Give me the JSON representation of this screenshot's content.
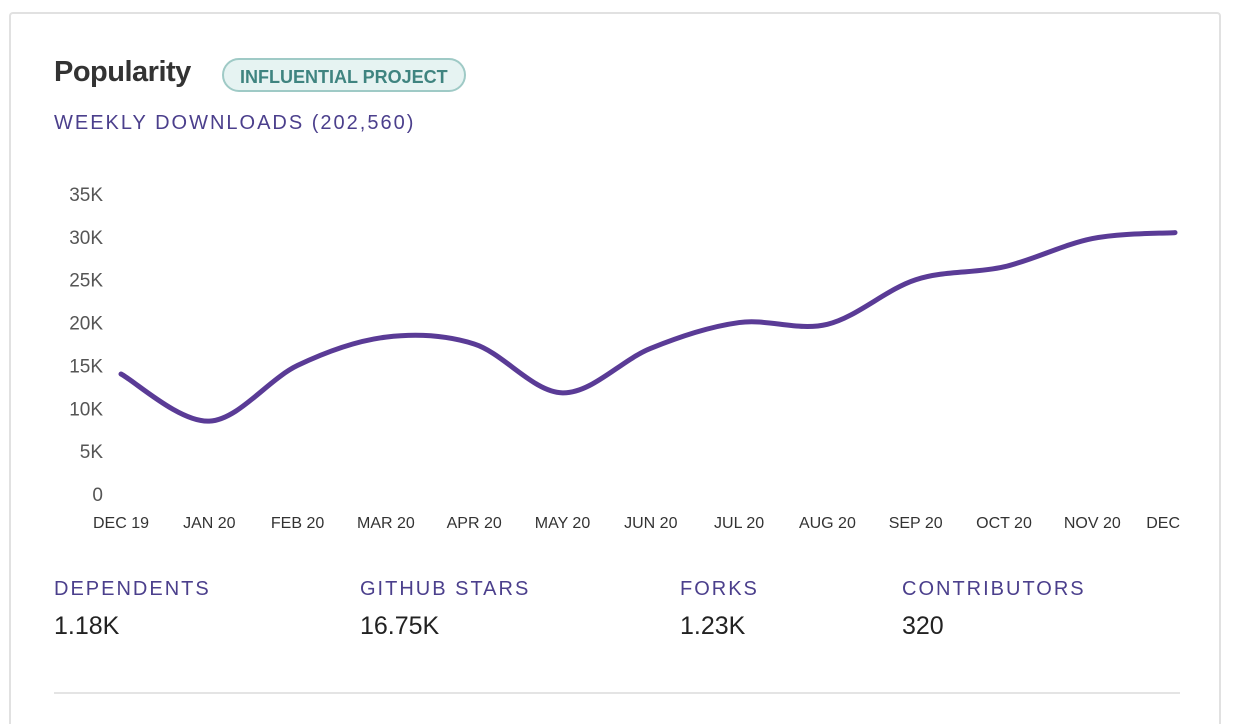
{
  "header": {
    "title": "Popularity",
    "badge": "INFLUENTIAL PROJECT",
    "downloads_label": "WEEKLY DOWNLOADS (202,560)"
  },
  "chart_data": {
    "type": "line",
    "title": "",
    "xlabel": "",
    "ylabel": "",
    "ylim": [
      0,
      35000
    ],
    "y_ticks": [
      "35K",
      "30K",
      "25K",
      "20K",
      "15K",
      "10K",
      "5K",
      "0"
    ],
    "categories": [
      "DEC 19",
      "JAN 20",
      "FEB 20",
      "MAR 20",
      "APR 20",
      "MAY 20",
      "JUN 20",
      "JUL 20",
      "AUG 20",
      "SEP 20",
      "OCT 20",
      "NOV 20",
      "DEC"
    ],
    "grid": false,
    "legend": "none",
    "series": [
      {
        "color": "#5a3b96",
        "values": [
          14000,
          8500,
          15000,
          18300,
          17500,
          11800,
          17000,
          20000,
          19800,
          25000,
          26500,
          29800,
          30500
        ]
      }
    ]
  },
  "stats": [
    {
      "label": "DEPENDENTS",
      "value": "1.18K"
    },
    {
      "label": "GITHUB STARS",
      "value": "16.75K"
    },
    {
      "label": "FORKS",
      "value": "1.23K"
    },
    {
      "label": "CONTRIBUTORS",
      "value": "320"
    }
  ],
  "colors": {
    "accent": "#4b3f8c",
    "line": "#5a3b96",
    "badge_bg": "#e6f3f2",
    "badge_border": "#9fcac6",
    "badge_text": "#3f8480"
  }
}
